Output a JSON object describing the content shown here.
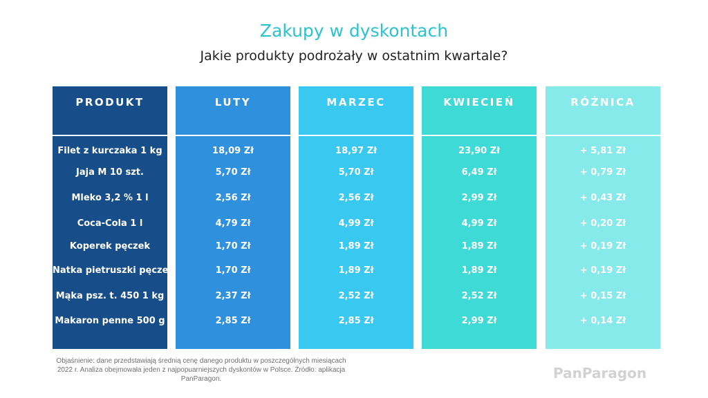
{
  "title": "Zakupy w dyskontach",
  "subtitle": "Jakie produkty podrożały w ostatnim kwartale?",
  "colors": {
    "produkt": "#174e8a",
    "luty": "#2f90dd",
    "marzec": "#39c8f0",
    "kwiecien": "#3edad6",
    "roznica": "#86e9ea",
    "title": "#2bc3cf"
  },
  "chart_data": {
    "type": "table",
    "title": "Zakupy w dyskontach",
    "subtitle": "Jakie produkty podrożały w ostatnim kwartale?",
    "columns": [
      "PRODUKT",
      "LUTY",
      "MARZEC",
      "KWIECIEŃ",
      "RÓŻNICA"
    ],
    "rows": [
      [
        "Filet z kurczaka 1 kg",
        "18,09 Zł",
        "18,97 Zł",
        "23,90 Zł",
        "+ 5,81 Zł"
      ],
      [
        "Jaja M 10 szt.",
        "5,70 Zł",
        "5,70 Zł",
        "6,49 Zł",
        "+ 0,79 Zł"
      ],
      [
        "Mleko 3,2 % 1 l",
        "2,56 Zł",
        "2,56 Zł",
        "2,99 Zł",
        "+ 0,43 Zł"
      ],
      [
        "Coca-Cola 1 l",
        "4,79 Zł",
        "4,99 Zł",
        "4,99 Zł",
        "+ 0,20 Zł"
      ],
      [
        "Koperek pęczek",
        "1,70 Zł",
        "1,89 Zł",
        "1,89 Zł",
        "+ 0,19 Zł"
      ],
      [
        "Natka pietruszki pęczek",
        "1,70 Zł",
        "1,89 Zł",
        "1,89 Zł",
        "+ 0,19 Zł"
      ],
      [
        "Mąka psz. t. 450 1 kg",
        "2,37 Zł",
        "2,52 Zł",
        "2,52 Zł",
        "+ 0,15 Zł"
      ],
      [
        "Makaron penne 500 g",
        "2,85 Zł",
        "2,85 Zł",
        "2,99 Zł",
        "+ 0,14 Zł"
      ]
    ]
  },
  "footnote": "Objaśnienie: dane przedstawiają średnią cenę danego produktu w poszczególnych miesiącach 2022 r. Analiza obejmowała jeden z najpopuarniejszych dyskontów w Polsce.  Źródło: aplikacja PanParagon.",
  "logo": "PanParagon"
}
